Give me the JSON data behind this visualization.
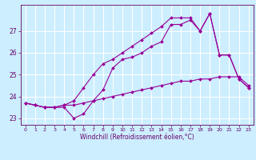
{
  "title": "",
  "xlabel": "Windchill (Refroidissement éolien,°C)",
  "ylabel": "",
  "bg_color": "#cceeff",
  "grid_color": "#ffffff",
  "line_color": "#990099",
  "ylim": [
    22.7,
    28.2
  ],
  "xlim": [
    -0.5,
    23.5
  ],
  "yticks": [
    23,
    24,
    25,
    26,
    27
  ],
  "xticks": [
    0,
    1,
    2,
    3,
    4,
    5,
    6,
    7,
    8,
    9,
    10,
    11,
    12,
    13,
    14,
    15,
    16,
    17,
    18,
    19,
    20,
    21,
    22,
    23
  ],
  "series1_x": [
    0,
    1,
    2,
    3,
    4,
    5,
    6,
    7,
    8,
    9,
    10,
    11,
    12,
    13,
    14,
    15,
    16,
    17,
    18,
    19,
    20,
    21,
    22,
    23
  ],
  "series1_y": [
    23.7,
    23.6,
    23.5,
    23.5,
    23.5,
    23.0,
    23.2,
    23.8,
    24.3,
    25.3,
    25.7,
    25.8,
    26.0,
    26.3,
    26.5,
    27.3,
    27.3,
    27.5,
    27.0,
    27.8,
    25.9,
    25.9,
    24.8,
    24.4
  ],
  "series2_x": [
    0,
    1,
    2,
    3,
    4,
    5,
    6,
    7,
    8,
    9,
    10,
    11,
    12,
    13,
    14,
    15,
    16,
    17,
    18,
    19,
    20,
    21,
    22,
    23
  ],
  "series2_y": [
    23.7,
    23.6,
    23.5,
    23.5,
    23.6,
    23.6,
    23.7,
    23.8,
    23.9,
    24.0,
    24.1,
    24.2,
    24.3,
    24.4,
    24.5,
    24.6,
    24.7,
    24.7,
    24.8,
    24.8,
    24.9,
    24.9,
    24.9,
    24.5
  ],
  "series3_x": [
    0,
    1,
    2,
    3,
    4,
    5,
    6,
    7,
    8,
    9,
    10,
    11,
    12,
    13,
    14,
    15,
    16,
    17,
    18,
    19,
    20,
    21,
    22,
    23
  ],
  "series3_y": [
    23.7,
    23.6,
    23.5,
    23.5,
    23.6,
    23.8,
    24.4,
    25.0,
    25.5,
    25.7,
    26.0,
    26.3,
    26.6,
    26.9,
    27.2,
    27.6,
    27.6,
    27.6,
    27.0,
    27.8,
    25.9,
    25.9,
    24.8,
    24.4
  ],
  "tick_color": "#660066",
  "xlabel_fontsize": 5.5,
  "ytick_fontsize": 5.5,
  "xtick_fontsize": 4.5
}
